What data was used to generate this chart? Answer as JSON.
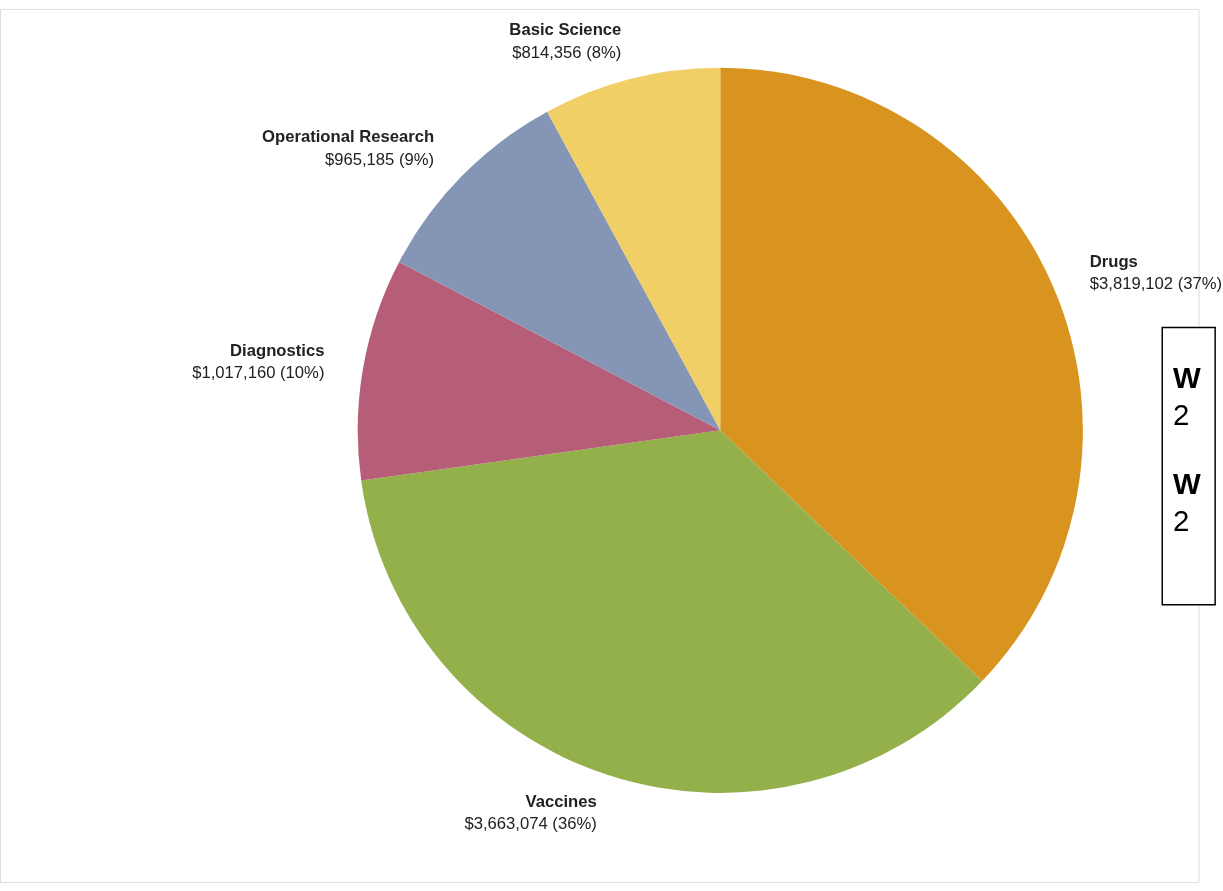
{
  "chart_data": {
    "type": "pie",
    "categories": [
      "Drugs",
      "Vaccines",
      "Diagnostics",
      "Operational Research",
      "Basic Science"
    ],
    "values": [
      3819102,
      3663074,
      1017160,
      965185,
      814356
    ],
    "colors": [
      "#d8941f",
      "#93b04a",
      "#b65d78",
      "#8595b5",
      "#f0cf67"
    ],
    "value_labels": [
      "$3,819,102 (37%)",
      "$3,663,074 (36%)",
      "$1,017,160 (10%)",
      "$965,185 (9%)",
      "$814,356 (8%)"
    ],
    "annotations": [
      "W",
      "2",
      "W",
      "2"
    ],
    "legend": false
  }
}
